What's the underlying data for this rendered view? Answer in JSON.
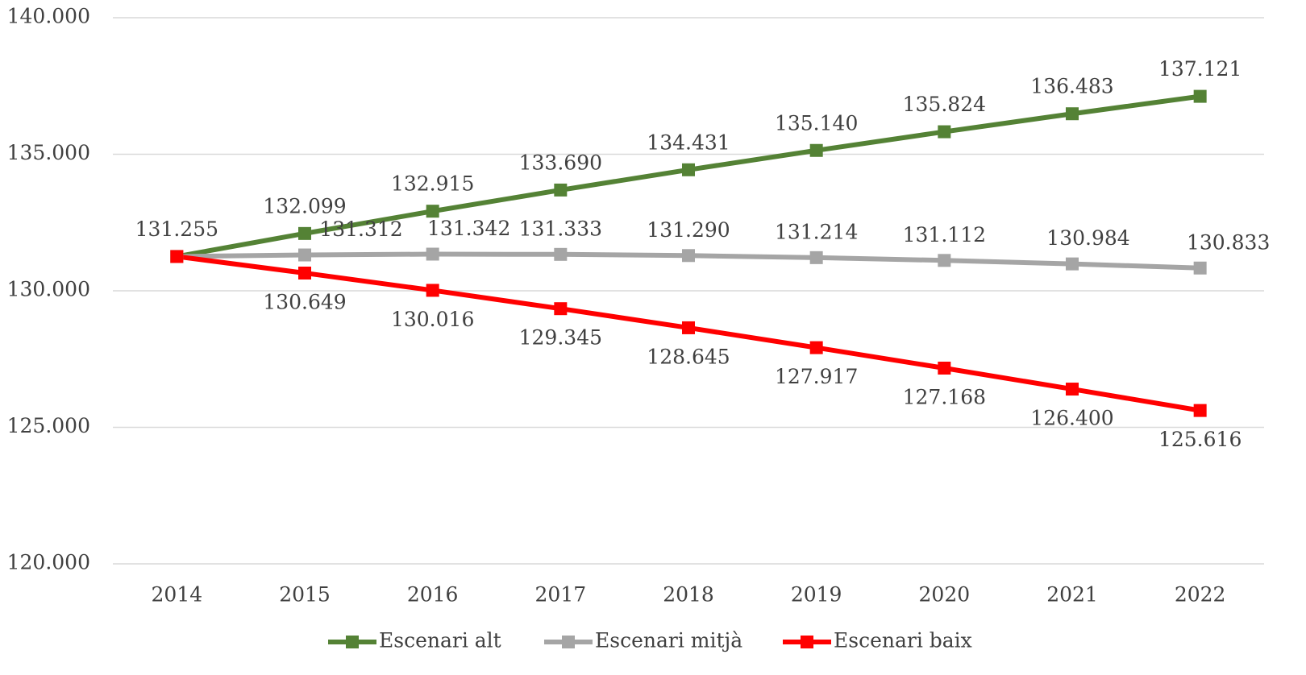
{
  "chart_data": {
    "type": "line",
    "categories": [
      "2014",
      "2015",
      "2016",
      "2017",
      "2018",
      "2019",
      "2020",
      "2021",
      "2022"
    ],
    "series": [
      {
        "name": "Escenari alt",
        "color": "#548235",
        "values": [
          131255,
          132099,
          132915,
          133690,
          134431,
          135140,
          135824,
          136483,
          137121
        ],
        "value_labels": [
          "131.255",
          "132.099",
          "132.915",
          "133.690",
          "134.431",
          "135.140",
          "135.824",
          "136.483",
          "137.121"
        ]
      },
      {
        "name": "Escenari mitjà",
        "color": "#a5a5a5",
        "values": [
          131255,
          131312,
          131342,
          131333,
          131290,
          131214,
          131112,
          130984,
          130833
        ],
        "value_labels": [
          null,
          "131.312",
          "131.342",
          "131.333",
          "131.290",
          "131.214",
          "131.112",
          "130.984",
          "130.833"
        ]
      },
      {
        "name": "Escenari baix",
        "color": "#ff0000",
        "values": [
          131255,
          130649,
          130016,
          129345,
          128645,
          127917,
          127168,
          126400,
          125616
        ],
        "value_labels": [
          null,
          "130.649",
          "130.016",
          "129.345",
          "128.645",
          "127.917",
          "127.168",
          "126.400",
          "125.616"
        ]
      }
    ],
    "ylim": [
      120000,
      140000
    ],
    "yticks": [
      {
        "value": 120000,
        "label": "120.000"
      },
      {
        "value": 125000,
        "label": "125.000"
      },
      {
        "value": 130000,
        "label": "130.000"
      },
      {
        "value": 135000,
        "label": "135.000"
      },
      {
        "value": 140000,
        "label": "140.000"
      }
    ],
    "grid": true,
    "legend": "bottom"
  }
}
